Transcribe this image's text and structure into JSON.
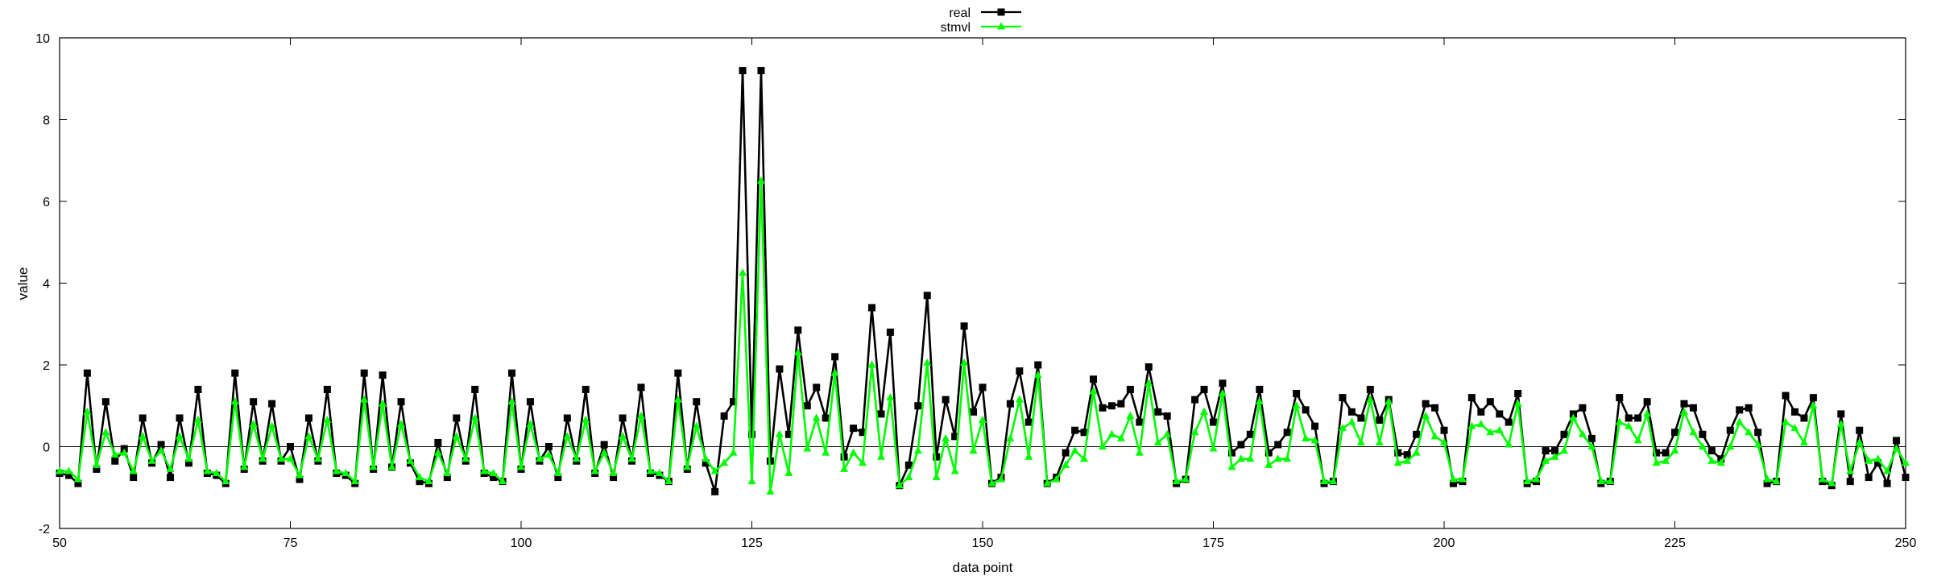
{
  "chart_data": {
    "type": "line",
    "title": "",
    "xlabel": "data point",
    "ylabel": "value",
    "xlim": [
      50,
      250
    ],
    "ylim": [
      -2,
      10
    ],
    "xticks": [
      50,
      75,
      100,
      125,
      150,
      175,
      200,
      225,
      250
    ],
    "yticks": [
      -2,
      0,
      2,
      4,
      6,
      8,
      10
    ],
    "legend_position": "top-center",
    "grid": false,
    "zero_line": true,
    "x_start": 50,
    "series": [
      {
        "name": "real",
        "color": "#000000",
        "marker": "square",
        "values": [
          -0.65,
          -0.7,
          -0.9,
          1.8,
          -0.55,
          1.1,
          -0.35,
          -0.05,
          -0.75,
          0.7,
          -0.4,
          0.05,
          -0.75,
          0.7,
          -0.4,
          1.4,
          -0.65,
          -0.7,
          -0.9,
          1.8,
          -0.55,
          1.1,
          -0.35,
          1.05,
          -0.35,
          0.0,
          -0.8,
          0.7,
          -0.35,
          1.4,
          -0.65,
          -0.7,
          -0.9,
          1.8,
          -0.55,
          1.75,
          -0.5,
          1.1,
          -0.4,
          -0.85,
          -0.9,
          0.1,
          -0.75,
          0.7,
          -0.35,
          1.4,
          -0.65,
          -0.75,
          -0.85,
          1.8,
          -0.55,
          1.1,
          -0.35,
          0.0,
          -0.75,
          0.7,
          -0.35,
          1.4,
          -0.65,
          0.05,
          -0.75,
          0.7,
          -0.35,
          1.45,
          -0.65,
          -0.7,
          -0.85,
          1.8,
          -0.55,
          1.1,
          -0.4,
          -1.1,
          0.75,
          1.1,
          9.2,
          0.3,
          9.2,
          -0.35,
          1.9,
          0.3,
          2.85,
          1.0,
          1.45,
          0.7,
          2.2,
          -0.25,
          0.45,
          0.35,
          3.4,
          0.8,
          2.8,
          -0.95,
          -0.45,
          1.0,
          3.7,
          -0.25,
          1.15,
          0.25,
          2.95,
          0.85,
          1.45,
          -0.9,
          -0.75,
          1.05,
          1.85,
          0.6,
          2.0,
          -0.9,
          -0.75,
          -0.15,
          0.4,
          0.35,
          1.65,
          0.95,
          1.0,
          1.05,
          1.4,
          0.6,
          1.95,
          0.85,
          0.75,
          -0.9,
          -0.8,
          1.15,
          1.4,
          0.6,
          1.55,
          -0.15,
          0.05,
          0.3,
          1.4,
          -0.15,
          0.05,
          0.35,
          1.3,
          0.9,
          0.5,
          -0.9,
          -0.85,
          1.2,
          0.85,
          0.7,
          1.4,
          0.65,
          1.15,
          -0.15,
          -0.2,
          0.3,
          1.05,
          0.95,
          0.4,
          -0.9,
          -0.85,
          1.2,
          0.85,
          1.1,
          0.8,
          0.6,
          1.3,
          -0.9,
          -0.85,
          -0.1,
          -0.1,
          0.3,
          0.8,
          0.95,
          0.2,
          -0.9,
          -0.85,
          1.2,
          0.7,
          0.7,
          1.1,
          -0.15,
          -0.15,
          0.35,
          1.05,
          0.95,
          0.3,
          -0.1,
          -0.3,
          0.4,
          0.9,
          0.95,
          0.35,
          -0.9,
          -0.85,
          1.25,
          0.85,
          0.7,
          1.2,
          -0.85,
          -0.95,
          0.8,
          -0.85,
          0.4,
          -0.75,
          -0.4,
          -0.9,
          0.15,
          -0.75
        ]
      },
      {
        "name": "stmvl",
        "color": "#00ff00",
        "marker": "triangle",
        "values": [
          -0.6,
          -0.6,
          -0.8,
          0.85,
          -0.45,
          0.35,
          -0.2,
          -0.15,
          -0.6,
          0.25,
          -0.35,
          -0.1,
          -0.55,
          0.25,
          -0.3,
          0.65,
          -0.6,
          -0.65,
          -0.85,
          1.1,
          -0.5,
          0.55,
          -0.3,
          0.5,
          -0.3,
          -0.3,
          -0.7,
          0.25,
          -0.3,
          0.65,
          -0.6,
          -0.65,
          -0.85,
          1.15,
          -0.5,
          1.05,
          -0.5,
          0.55,
          -0.35,
          -0.75,
          -0.85,
          -0.15,
          -0.65,
          0.25,
          -0.3,
          0.7,
          -0.6,
          -0.65,
          -0.85,
          1.1,
          -0.5,
          0.55,
          -0.3,
          -0.2,
          -0.65,
          0.25,
          -0.3,
          0.65,
          -0.6,
          -0.15,
          -0.65,
          0.25,
          -0.3,
          0.75,
          -0.6,
          -0.65,
          -0.85,
          1.15,
          -0.5,
          0.5,
          -0.3,
          -0.6,
          -0.4,
          -0.15,
          4.25,
          -0.85,
          6.5,
          -1.1,
          0.3,
          -0.65,
          2.3,
          -0.05,
          0.7,
          -0.15,
          1.8,
          -0.55,
          -0.15,
          -0.4,
          2.0,
          -0.25,
          1.2,
          -0.95,
          -0.75,
          -0.1,
          2.05,
          -0.75,
          0.2,
          -0.6,
          2.05,
          -0.1,
          0.65,
          -0.9,
          -0.8,
          0.2,
          1.15,
          -0.25,
          1.75,
          -0.9,
          -0.8,
          -0.45,
          -0.1,
          -0.3,
          1.35,
          0.0,
          0.3,
          0.2,
          0.75,
          -0.15,
          1.55,
          0.1,
          0.3,
          -0.85,
          -0.8,
          0.35,
          0.85,
          -0.05,
          1.3,
          -0.5,
          -0.3,
          -0.3,
          1.1,
          -0.45,
          -0.3,
          -0.3,
          1.0,
          0.2,
          0.15,
          -0.85,
          -0.85,
          0.45,
          0.6,
          0.1,
          1.15,
          0.1,
          1.1,
          -0.4,
          -0.35,
          -0.15,
          0.75,
          0.25,
          0.1,
          -0.8,
          -0.8,
          0.5,
          0.55,
          0.35,
          0.4,
          0.05,
          1.05,
          -0.85,
          -0.8,
          -0.35,
          -0.25,
          -0.1,
          0.7,
          0.3,
          0.0,
          -0.85,
          -0.85,
          0.6,
          0.5,
          0.15,
          0.8,
          -0.4,
          -0.35,
          -0.1,
          0.85,
          0.35,
          0.0,
          -0.35,
          -0.4,
          0.0,
          0.6,
          0.35,
          0.05,
          -0.8,
          -0.85,
          0.6,
          0.45,
          0.1,
          1.0,
          -0.8,
          -0.9,
          0.55,
          -0.6,
          0.1,
          -0.35,
          -0.3,
          -0.6,
          -0.05,
          -0.4
        ]
      }
    ]
  }
}
